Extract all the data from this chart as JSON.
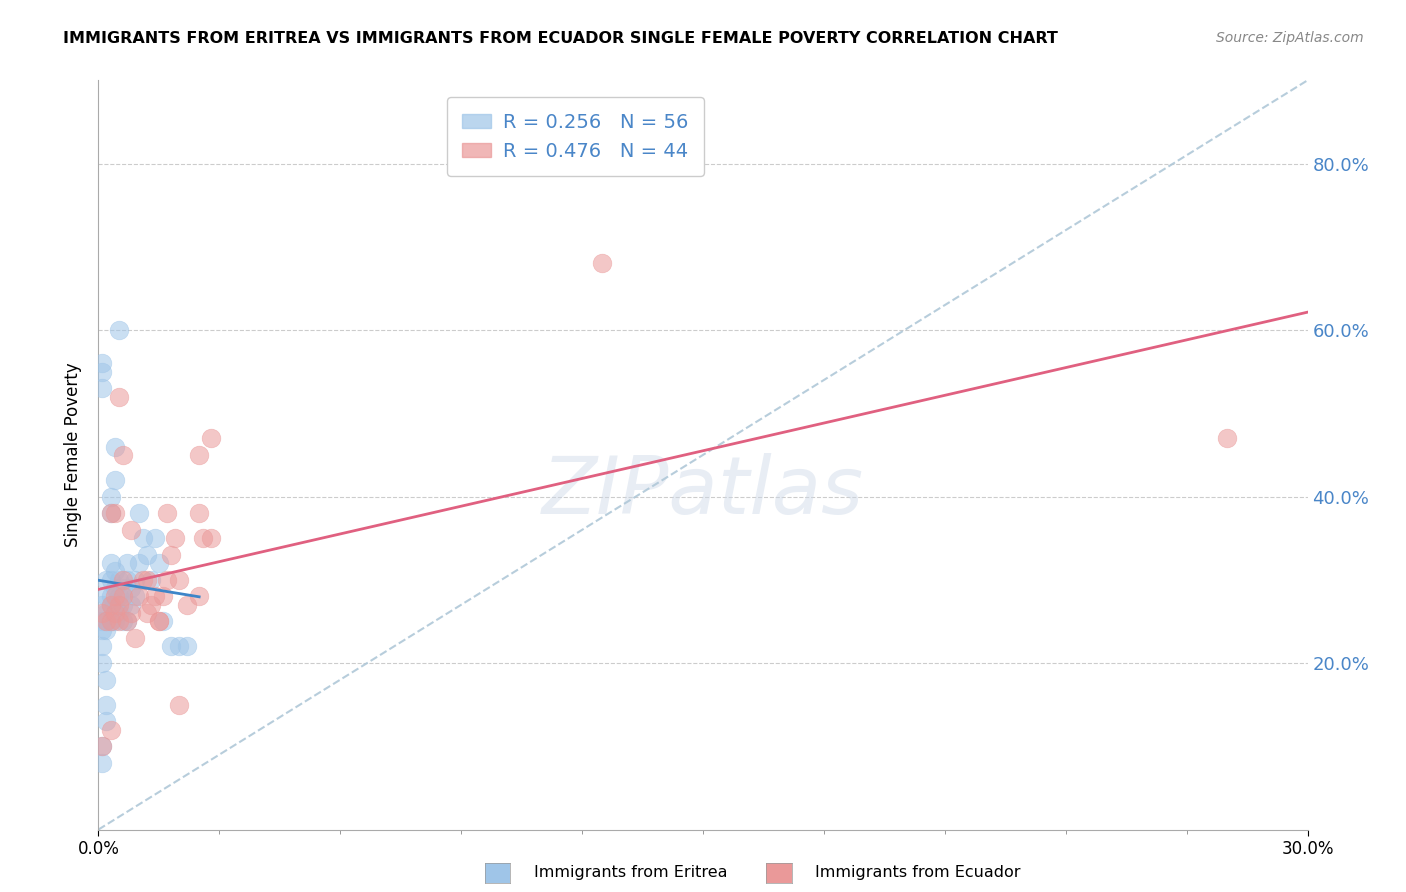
{
  "title": "IMMIGRANTS FROM ERITREA VS IMMIGRANTS FROM ECUADOR SINGLE FEMALE POVERTY CORRELATION CHART",
  "source": "Source: ZipAtlas.com",
  "ylabel": "Single Female Poverty",
  "legend_label1": "Immigrants from Eritrea",
  "legend_label2": "Immigrants from Ecuador",
  "R1": 0.256,
  "N1": 56,
  "R2": 0.476,
  "N2": 44,
  "color1": "#9fc5e8",
  "color2": "#ea9999",
  "trendline1_color": "#3d85c8",
  "trendline2_color": "#e06080",
  "dashed_line_color": "#b0c8d8",
  "xmin": 0.0,
  "xmax": 0.3,
  "ymin": 0.0,
  "ymax": 0.9,
  "yticks": [
    0.2,
    0.4,
    0.6,
    0.8
  ],
  "watermark": "ZIPatlas",
  "background_color": "#ffffff",
  "grid_color": "#cccccc",
  "axis_label_color": "#4a86c8",
  "eritrea_x": [
    0.001,
    0.001,
    0.001,
    0.001,
    0.001,
    0.001,
    0.001,
    0.001,
    0.002,
    0.002,
    0.002,
    0.002,
    0.002,
    0.002,
    0.002,
    0.003,
    0.003,
    0.003,
    0.003,
    0.003,
    0.004,
    0.004,
    0.004,
    0.004,
    0.004,
    0.005,
    0.005,
    0.005,
    0.005,
    0.006,
    0.006,
    0.006,
    0.007,
    0.007,
    0.007,
    0.008,
    0.008,
    0.009,
    0.009,
    0.01,
    0.01,
    0.011,
    0.012,
    0.013,
    0.014,
    0.015,
    0.016,
    0.018,
    0.02,
    0.022,
    0.001,
    0.001,
    0.002,
    0.003,
    0.003,
    0.004
  ],
  "eritrea_y": [
    0.25,
    0.27,
    0.53,
    0.55,
    0.56,
    0.2,
    0.22,
    0.24,
    0.26,
    0.28,
    0.3,
    0.25,
    0.24,
    0.15,
    0.18,
    0.25,
    0.27,
    0.28,
    0.3,
    0.32,
    0.25,
    0.27,
    0.29,
    0.31,
    0.46,
    0.26,
    0.28,
    0.3,
    0.6,
    0.25,
    0.27,
    0.29,
    0.3,
    0.32,
    0.25,
    0.27,
    0.29,
    0.28,
    0.3,
    0.32,
    0.38,
    0.35,
    0.33,
    0.3,
    0.35,
    0.32,
    0.25,
    0.22,
    0.22,
    0.22,
    0.1,
    0.08,
    0.13,
    0.38,
    0.4,
    0.42
  ],
  "ecuador_x": [
    0.001,
    0.002,
    0.003,
    0.003,
    0.004,
    0.004,
    0.005,
    0.005,
    0.006,
    0.006,
    0.007,
    0.008,
    0.009,
    0.01,
    0.011,
    0.012,
    0.013,
    0.014,
    0.015,
    0.016,
    0.017,
    0.018,
    0.019,
    0.02,
    0.022,
    0.025,
    0.025,
    0.026,
    0.028,
    0.003,
    0.004,
    0.005,
    0.006,
    0.008,
    0.012,
    0.015,
    0.017,
    0.02,
    0.025,
    0.028,
    0.125,
    0.28,
    0.001,
    0.003
  ],
  "ecuador_y": [
    0.26,
    0.25,
    0.27,
    0.25,
    0.26,
    0.28,
    0.25,
    0.27,
    0.28,
    0.3,
    0.25,
    0.26,
    0.23,
    0.28,
    0.3,
    0.26,
    0.27,
    0.28,
    0.25,
    0.28,
    0.3,
    0.33,
    0.35,
    0.3,
    0.27,
    0.28,
    0.38,
    0.35,
    0.47,
    0.38,
    0.38,
    0.52,
    0.45,
    0.36,
    0.3,
    0.25,
    0.38,
    0.15,
    0.45,
    0.35,
    0.68,
    0.47,
    0.1,
    0.12
  ]
}
